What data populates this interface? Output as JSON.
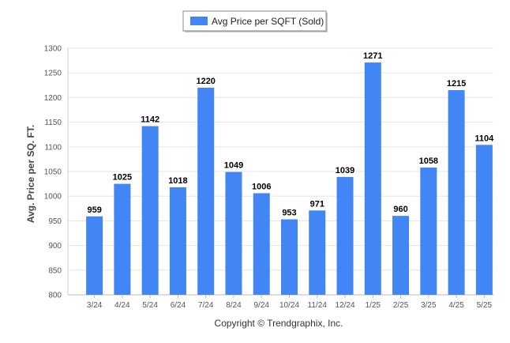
{
  "chart_data": {
    "type": "bar",
    "categories": [
      "3/24",
      "4/24",
      "5/24",
      "6/24",
      "7/24",
      "8/24",
      "9/24",
      "10/24",
      "11/24",
      "12/24",
      "1/25",
      "2/25",
      "3/25",
      "4/25",
      "5/25"
    ],
    "series": [
      {
        "name": "Avg Price per SQFT (Sold)",
        "values": [
          959,
          1025,
          1142,
          1018,
          1220,
          1049,
          1006,
          953,
          971,
          1039,
          1271,
          960,
          1058,
          1215,
          1104
        ],
        "color": "#4285f4"
      }
    ],
    "ylabel": "Avg. Price per SQ. FT.",
    "xlabel": "",
    "ylim": [
      800,
      1300
    ],
    "yticks": [
      800,
      850,
      900,
      950,
      1000,
      1050,
      1100,
      1150,
      1200,
      1250,
      1300
    ],
    "grid": true,
    "legend_position": "top-center",
    "data_labels": true
  },
  "footer": {
    "copyright": "Copyright © Trendgraphix, Inc."
  }
}
